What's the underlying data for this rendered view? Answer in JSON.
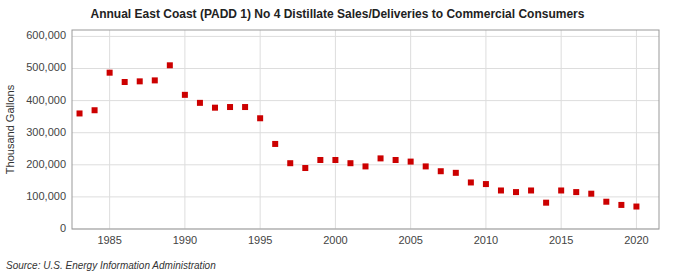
{
  "chart_data": {
    "type": "scatter",
    "title": "Annual East Coast (PADD 1) No 4 Distillate Sales/Deliveries to Commercial Consumers",
    "ylabel": "Thousand Gallons",
    "annotations": [
      "Source: U.S. Energy Information Administration"
    ],
    "x": [
      1983,
      1984,
      1985,
      1986,
      1987,
      1988,
      1989,
      1990,
      1991,
      1992,
      1993,
      1994,
      1995,
      1996,
      1997,
      1998,
      1999,
      2000,
      2001,
      2002,
      2003,
      2004,
      2005,
      2006,
      2007,
      2008,
      2009,
      2010,
      2011,
      2012,
      2013,
      2014,
      2015,
      2016,
      2017,
      2018,
      2019,
      2020
    ],
    "values": [
      360000,
      370000,
      487000,
      458000,
      460000,
      463000,
      510000,
      418000,
      393000,
      378000,
      380000,
      380000,
      345000,
      265000,
      205000,
      190000,
      215000,
      215000,
      205000,
      195000,
      220000,
      215000,
      210000,
      195000,
      180000,
      175000,
      145000,
      140000,
      120000,
      115000,
      120000,
      82000,
      120000,
      115000,
      110000,
      85000,
      75000,
      70000
    ],
    "color": "#cc0000",
    "marker": "square",
    "xlim": [
      1982.5,
      2021.5
    ],
    "xticks": [
      1985,
      1990,
      1995,
      2000,
      2005,
      2010,
      2015,
      2020
    ],
    "ylim": [
      0,
      620000
    ],
    "yticks": [
      0,
      {
        "value": 100000,
        "label": "100,000"
      },
      {
        "value": 200000,
        "label": "200,000"
      },
      {
        "value": 300000,
        "label": "300,000"
      },
      {
        "value": 400000,
        "label": "400,000"
      },
      {
        "value": 500000,
        "label": "500,000"
      },
      {
        "value": 600000,
        "label": "600,000"
      }
    ],
    "grid": true
  }
}
